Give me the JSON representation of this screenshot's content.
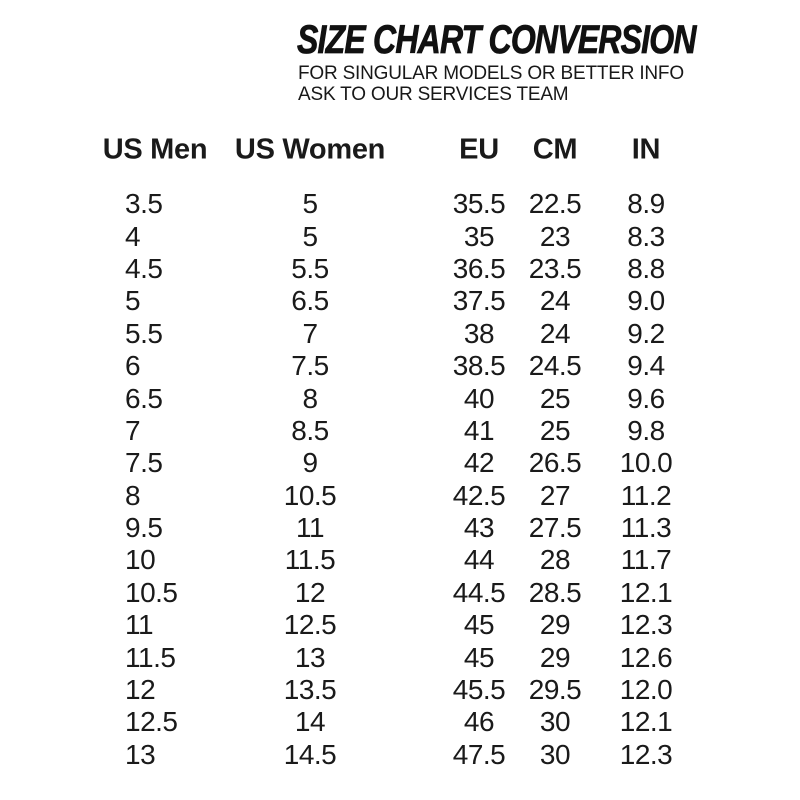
{
  "colors": {
    "background": "#ffffff",
    "text": "#1a1a1a",
    "title": "#111111"
  },
  "header": {
    "title": "SIZE CHART CONVERSION",
    "subtitle_line1": "FOR SINGULAR MODELS OR BETTER INFO",
    "subtitle_line2": "ASK TO OUR SERVICES TEAM"
  },
  "chart_data": {
    "type": "table",
    "title": "SIZE CHART CONVERSION",
    "columns": [
      "US Men",
      "US Women",
      "EU",
      "CM",
      "IN"
    ],
    "rows": [
      [
        "3.5",
        "5",
        "35.5",
        "22.5",
        "8.9"
      ],
      [
        "4",
        "5",
        "35",
        "23",
        "8.3"
      ],
      [
        "4.5",
        "5.5",
        "36.5",
        "23.5",
        "8.8"
      ],
      [
        "5",
        "6.5",
        "37.5",
        "24",
        "9.0"
      ],
      [
        "5.5",
        "7",
        "38",
        "24",
        "9.2"
      ],
      [
        "6",
        "7.5",
        "38.5",
        "24.5",
        "9.4"
      ],
      [
        "6.5",
        "8",
        "40",
        "25",
        "9.6"
      ],
      [
        "7",
        "8.5",
        "41",
        "25",
        "9.8"
      ],
      [
        "7.5",
        "9",
        "42",
        "26.5",
        "10.0"
      ],
      [
        "8",
        "10.5",
        "42.5",
        "27",
        "11.2"
      ],
      [
        "9.5",
        "11",
        "43",
        "27.5",
        "11.3"
      ],
      [
        "10",
        "11.5",
        "44",
        "28",
        "11.7"
      ],
      [
        "10.5",
        "12",
        "44.5",
        "28.5",
        "12.1"
      ],
      [
        "11",
        "12.5",
        "45",
        "29",
        "12.3"
      ],
      [
        "11.5",
        "13",
        "45",
        "29",
        "12.6"
      ],
      [
        "12",
        "13.5",
        "45.5",
        "29.5",
        "12.0"
      ],
      [
        "12.5",
        "14",
        "46",
        "30",
        "12.1"
      ],
      [
        "13",
        "14.5",
        "47.5",
        "30",
        "12.3"
      ]
    ]
  }
}
